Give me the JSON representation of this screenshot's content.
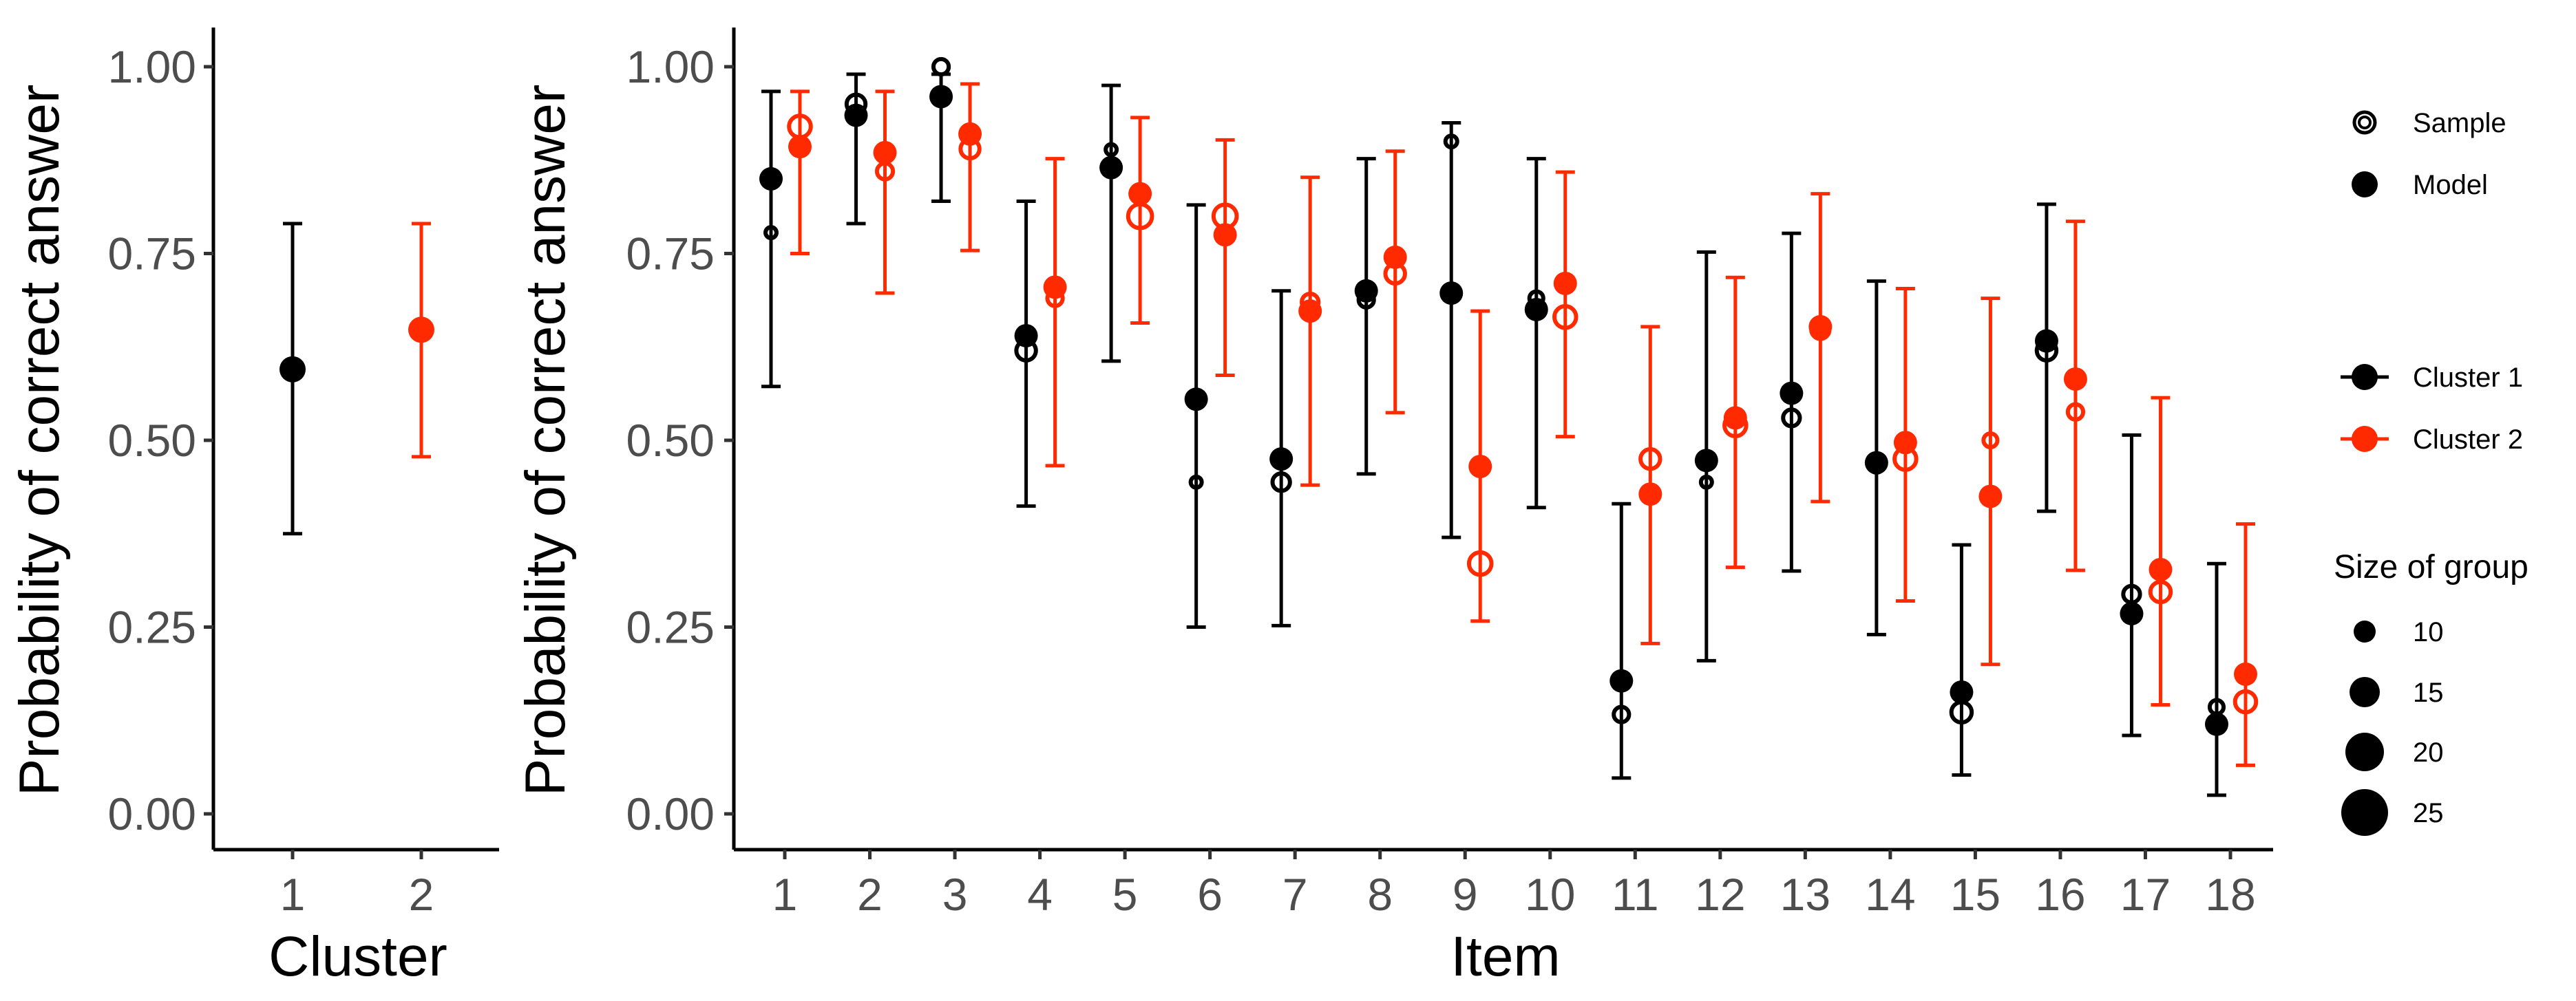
{
  "colors": {
    "cluster1": "#000000",
    "cluster2": "#ff2a00",
    "tick_text": "#4d4d4d"
  },
  "legend": {
    "type_entries": [
      {
        "label": "Sample",
        "icon": "open-circle-icon"
      },
      {
        "label": "Model",
        "icon": "filled-circle-icon"
      }
    ],
    "cluster_entries": [
      {
        "label": "Cluster 1",
        "color": "#000000"
      },
      {
        "label": "Cluster 2",
        "color": "#ff2a00"
      }
    ],
    "size_title": "Size of group",
    "size_entries": [
      {
        "label": "10",
        "value": 10
      },
      {
        "label": "15",
        "value": 15
      },
      {
        "label": "20",
        "value": 20
      },
      {
        "label": "25",
        "value": 25
      }
    ]
  },
  "chart_data": [
    {
      "type": "scatter",
      "xlabel": "Cluster",
      "ylabel": "Probability of correct answer",
      "ylim": [
        0,
        1
      ],
      "yticks": [
        "0.00",
        "0.25",
        "0.50",
        "0.75",
        "1.00"
      ],
      "categories": [
        "1",
        "2"
      ],
      "grid": false,
      "series": [
        {
          "name": "Cluster 1",
          "x": "1",
          "color": "#000000",
          "estimate": 0.595,
          "lower": 0.375,
          "upper": 0.79
        },
        {
          "name": "Cluster 2",
          "x": "2",
          "color": "#ff2a00",
          "estimate": 0.648,
          "lower": 0.478,
          "upper": 0.79
        }
      ]
    },
    {
      "type": "scatter",
      "xlabel": "Item",
      "ylabel": "Probability of correct answer",
      "ylim": [
        0,
        1
      ],
      "yticks": [
        "0.00",
        "0.25",
        "0.50",
        "0.75",
        "1.00"
      ],
      "categories": [
        "1",
        "2",
        "3",
        "4",
        "5",
        "6",
        "7",
        "8",
        "9",
        "10",
        "11",
        "12",
        "13",
        "14",
        "15",
        "16",
        "17",
        "18"
      ],
      "grid": false,
      "legend_position": "right",
      "series": [
        {
          "name": "Cluster 1",
          "color": "#000000",
          "model": [
            0.85,
            0.935,
            0.96,
            0.64,
            0.865,
            0.555,
            0.475,
            0.7,
            0.697,
            0.675,
            0.178,
            0.473,
            0.563,
            0.47,
            0.163,
            0.633,
            0.268,
            0.12
          ],
          "lower": [
            0.572,
            0.79,
            0.82,
            0.412,
            0.606,
            0.25,
            0.252,
            0.455,
            0.37,
            0.41,
            0.048,
            0.205,
            0.325,
            0.24,
            0.052,
            0.405,
            0.105,
            0.025
          ],
          "upper": [
            0.967,
            0.99,
            0.99,
            0.82,
            0.975,
            0.815,
            0.7,
            0.877,
            0.925,
            0.877,
            0.415,
            0.752,
            0.777,
            0.713,
            0.36,
            0.816,
            0.507,
            0.335
          ],
          "sample": [
            0.778,
            0.95,
            1.0,
            0.62,
            0.889,
            0.444,
            0.444,
            0.688,
            0.9,
            0.69,
            0.133,
            0.444,
            0.53,
            0.467,
            0.136,
            0.62,
            0.294,
            0.143
          ],
          "group_size": [
            9,
            20,
            15,
            21,
            9,
            9,
            18,
            15,
            10,
            13,
            15,
            9,
            17,
            15,
            22,
            21,
            17,
            13
          ]
        },
        {
          "name": "Cluster 2",
          "color": "#ff2a00",
          "model": [
            0.893,
            0.885,
            0.91,
            0.705,
            0.83,
            0.775,
            0.673,
            0.745,
            0.465,
            0.71,
            0.428,
            0.53,
            0.652,
            0.497,
            0.425,
            0.582,
            0.327,
            0.187
          ],
          "lower": [
            0.75,
            0.697,
            0.754,
            0.466,
            0.657,
            0.587,
            0.44,
            0.537,
            0.258,
            0.505,
            0.228,
            0.33,
            0.418,
            0.285,
            0.2,
            0.326,
            0.146,
            0.065
          ],
          "upper": [
            0.967,
            0.967,
            0.977,
            0.877,
            0.932,
            0.902,
            0.852,
            0.887,
            0.673,
            0.859,
            0.652,
            0.718,
            0.83,
            0.703,
            0.69,
            0.793,
            0.557,
            0.388
          ],
          "sample": [
            0.92,
            0.86,
            0.89,
            0.69,
            0.8,
            0.8,
            0.685,
            0.723,
            0.335,
            0.665,
            0.475,
            0.52,
            0.648,
            0.475,
            0.5,
            0.538,
            0.297,
            0.15
          ],
          "group_size": [
            24,
            16,
            20,
            15,
            27,
            26,
            17,
            21,
            25,
            24,
            21,
            24,
            19,
            24,
            13,
            15,
            22,
            23
          ]
        }
      ]
    }
  ]
}
